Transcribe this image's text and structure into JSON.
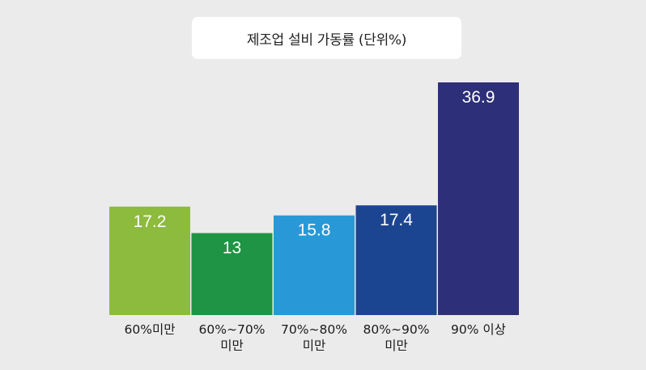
{
  "chart_data": {
    "type": "bar",
    "title": "제조업 설비 가동률 (단위%)",
    "categories": [
      [
        "60%미만"
      ],
      [
        "60%∼70%",
        "미만"
      ],
      [
        "70%∼80%",
        "미만"
      ],
      [
        "80%∼90%",
        "미만"
      ],
      [
        "90% 이상"
      ]
    ],
    "values": [
      17.2,
      13,
      15.8,
      17.4,
      36.9
    ],
    "value_labels": [
      "17.2",
      "13",
      "15.8",
      "17.4",
      "36.9"
    ],
    "colors": [
      "#8dbb3e",
      "#1f9444",
      "#2899d6",
      "#1b4591",
      "#2d2f78"
    ],
    "ylim": [
      0,
      37
    ],
    "grid": false,
    "legend": "none"
  }
}
